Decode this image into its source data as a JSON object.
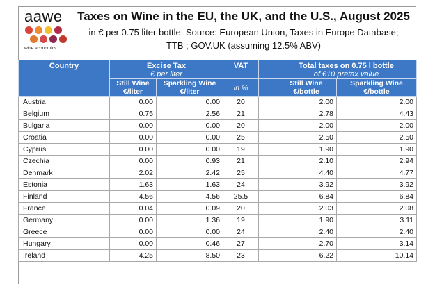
{
  "logo": {
    "name": "aawe",
    "subtitle": "wine economics",
    "dot_colors": [
      "#d9453a",
      "#ef8a2e",
      "#f2c12e",
      "#b12b45",
      "#e07a30",
      "#d34a4a",
      "#8e2a4f",
      "#c0392b"
    ]
  },
  "title": "Taxes on Wine in the EU, the UK, and the U.S., August 2025",
  "subtitle_line1": "in € per 0.75 liter bottle. Source: European Union, Taxes in Europe Database;",
  "subtitle_line2": "TTB ; GOV.UK (assuming 12.5% ABV)",
  "table": {
    "header": {
      "country": "Country",
      "excise_tax": "Excise Tax",
      "excise_unit": "€ per liter",
      "vat": "VAT",
      "vat_unit": "in %",
      "total": "Total taxes on 0.75 l bottle",
      "total_note": "of €10 pretax value",
      "still_wine": "Still Wine",
      "sparkling_wine": "Sparkling Wine",
      "per_liter": "€/liter",
      "per_bottle": "€/bottle"
    },
    "rows": [
      {
        "country": "Austria",
        "still": "0.00",
        "sparkling": "0.00",
        "vat": "20",
        "total_still": "2.00",
        "total_sparkling": "2.00"
      },
      {
        "country": "Belgium",
        "still": "0.75",
        "sparkling": "2.56",
        "vat": "21",
        "total_still": "2.78",
        "total_sparkling": "4.43"
      },
      {
        "country": "Bulgaria",
        "still": "0.00",
        "sparkling": "0.00",
        "vat": "20",
        "total_still": "2.00",
        "total_sparkling": "2.00"
      },
      {
        "country": "Croatia",
        "still": "0.00",
        "sparkling": "0.00",
        "vat": "25",
        "total_still": "2.50",
        "total_sparkling": "2.50"
      },
      {
        "country": "Cyprus",
        "still": "0.00",
        "sparkling": "0.00",
        "vat": "19",
        "total_still": "1.90",
        "total_sparkling": "1.90"
      },
      {
        "country": "Czechia",
        "still": "0.00",
        "sparkling": "0.93",
        "vat": "21",
        "total_still": "2.10",
        "total_sparkling": "2.94"
      },
      {
        "country": "Denmark",
        "still": "2.02",
        "sparkling": "2.42",
        "vat": "25",
        "total_still": "4.40",
        "total_sparkling": "4.77"
      },
      {
        "country": "Estonia",
        "still": "1.63",
        "sparkling": "1.63",
        "vat": "24",
        "total_still": "3.92",
        "total_sparkling": "3.92"
      },
      {
        "country": "Finland",
        "still": "4.56",
        "sparkling": "4.56",
        "vat": "25.5",
        "total_still": "6.84",
        "total_sparkling": "6.84"
      },
      {
        "country": "France",
        "still": "0.04",
        "sparkling": "0.09",
        "vat": "20",
        "total_still": "2.03",
        "total_sparkling": "2.08"
      },
      {
        "country": "Germany",
        "still": "0.00",
        "sparkling": "1.36",
        "vat": "19",
        "total_still": "1.90",
        "total_sparkling": "3.11"
      },
      {
        "country": "Greece",
        "still": "0.00",
        "sparkling": "0.00",
        "vat": "24",
        "total_still": "2.40",
        "total_sparkling": "2.40"
      },
      {
        "country": "Hungary",
        "still": "0.00",
        "sparkling": "0.46",
        "vat": "27",
        "total_still": "2.70",
        "total_sparkling": "3.14"
      },
      {
        "country": "Ireland",
        "still": "4.25",
        "sparkling": "8.50",
        "vat": "23",
        "total_still": "6.22",
        "total_sparkling": "10.14"
      }
    ]
  }
}
